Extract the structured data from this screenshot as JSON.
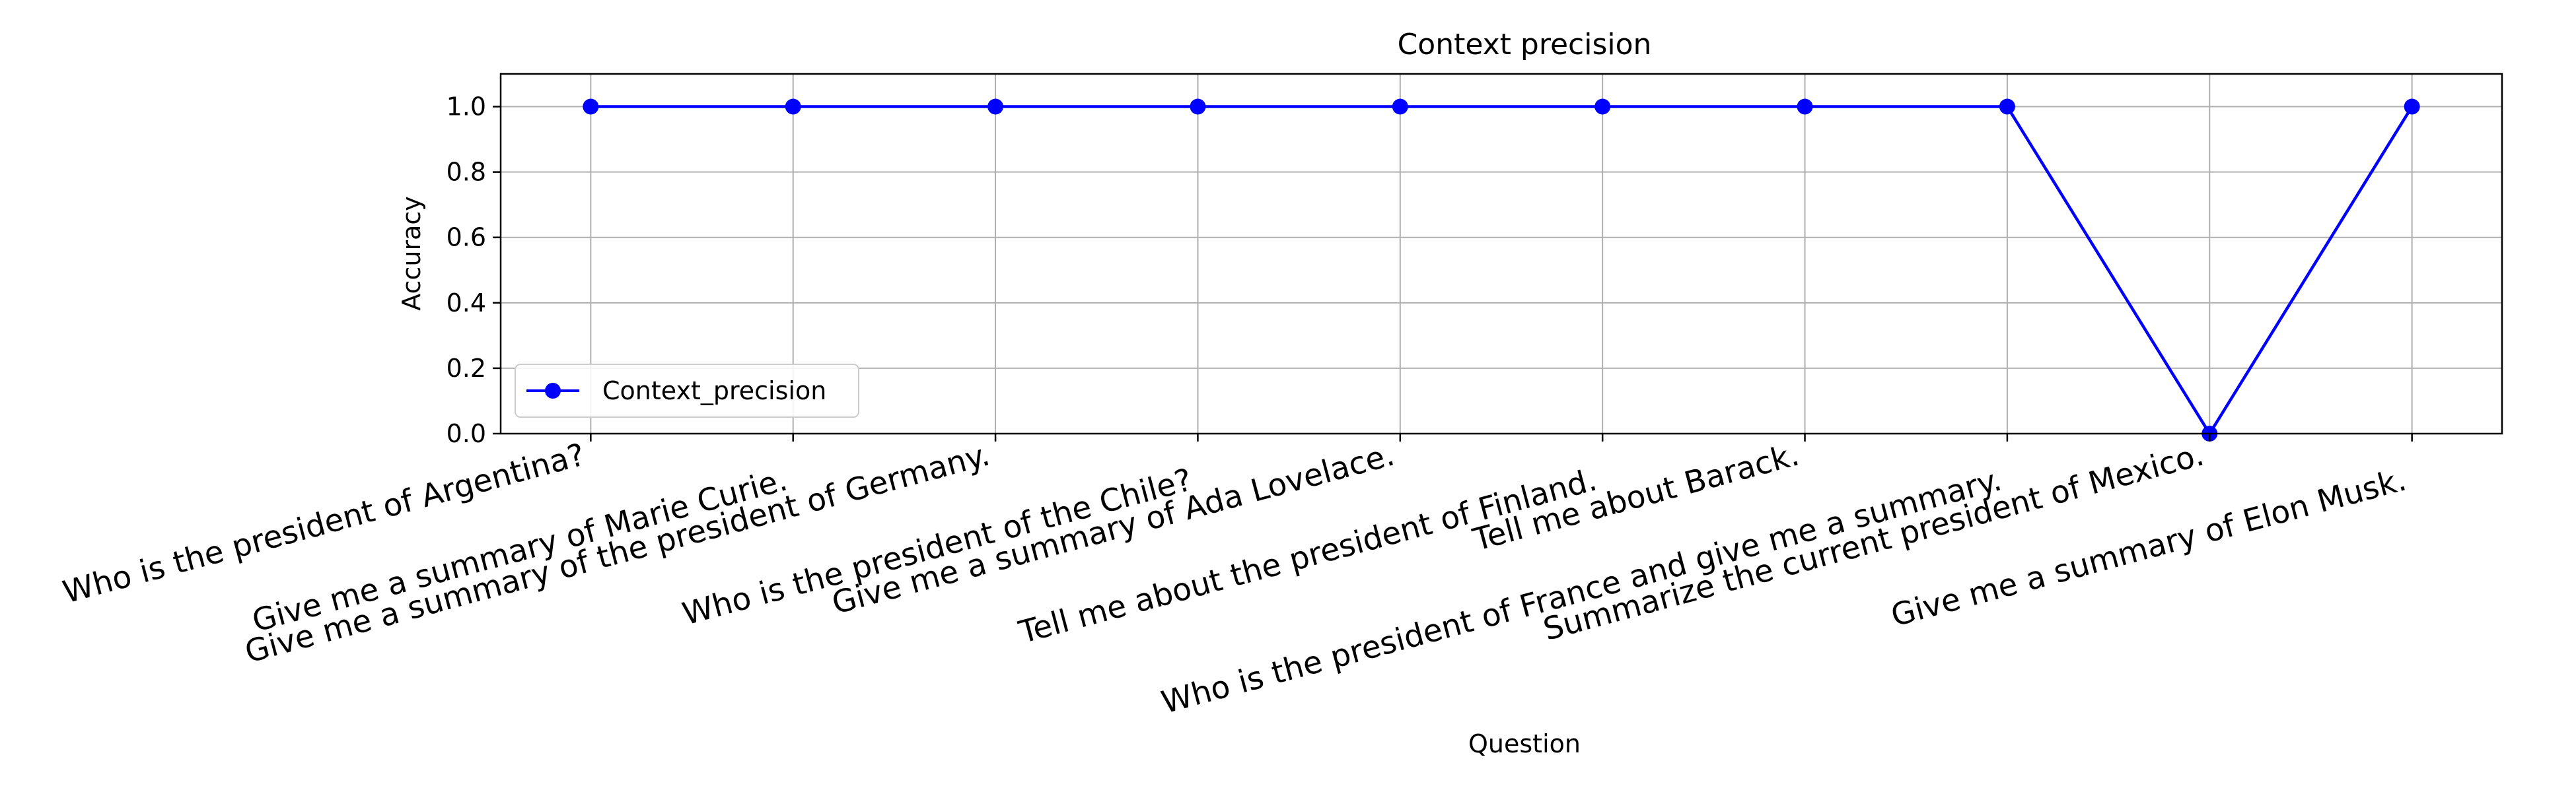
{
  "chart_data": {
    "type": "line",
    "title": "Context precision",
    "xlabel": "Question",
    "ylabel": "Accuracy",
    "ylim": [
      0.0,
      1.1
    ],
    "yticks": [
      "0.0",
      "0.2",
      "0.4",
      "0.6",
      "0.8",
      "1.0"
    ],
    "grid": true,
    "legend_position": "lower-left",
    "categories": [
      "Who is the president of Argentina?",
      "Give me a summary of Marie Curie.",
      "Give me a summary of the president of Germany.",
      "Who is the president of the Chile?",
      "Give me a summary of Ada Lovelace.",
      "Tell me about the president of Finland.",
      "Tell me about Barack.",
      "Who is the president of France and give me a summary.",
      "Summarize the current president of Mexico.",
      "Give me a summary of Elon Musk."
    ],
    "series": [
      {
        "name": "Context_precision",
        "color": "#0000ff",
        "values": [
          1.0,
          1.0,
          1.0,
          1.0,
          1.0,
          1.0,
          1.0,
          1.0,
          0.0,
          1.0
        ]
      }
    ]
  }
}
